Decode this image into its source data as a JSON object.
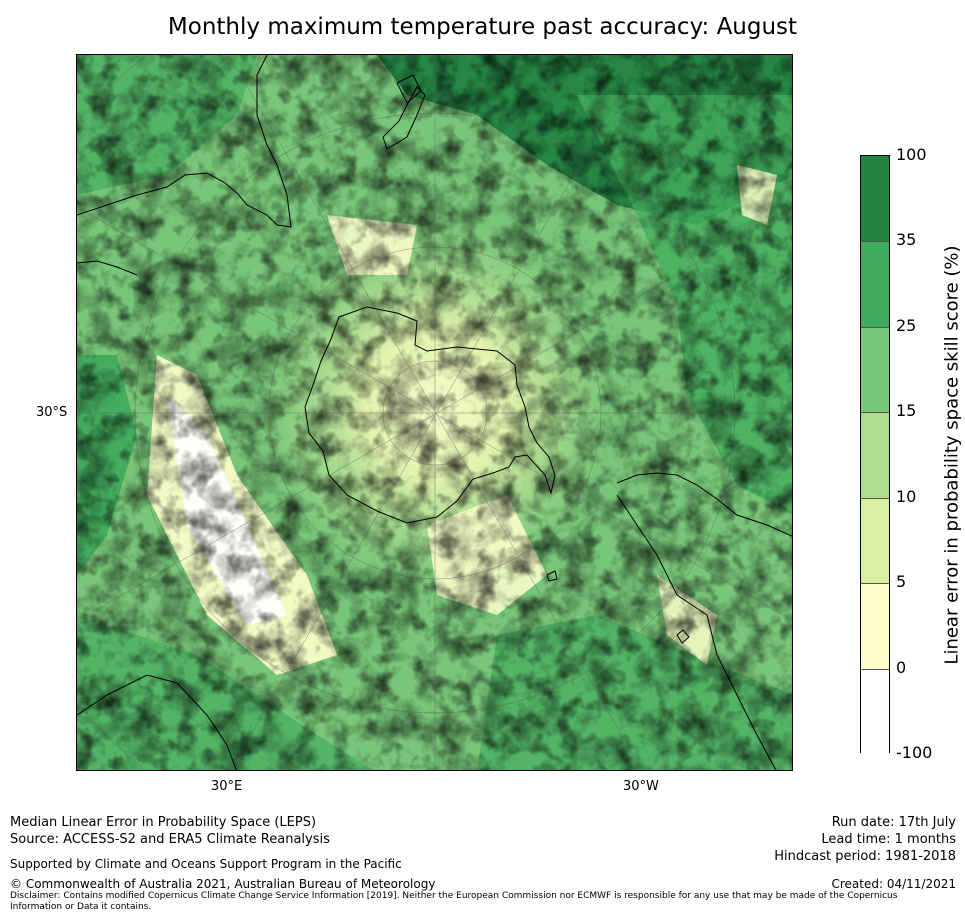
{
  "title": "Monthly maximum temperature past accuracy: August",
  "map": {
    "lat_label": "30°S",
    "lon_labels": [
      "30°E",
      "30°W"
    ]
  },
  "colorbar": {
    "label": "Linear error in probability space skill score (%)",
    "ticks": [
      "100",
      "35",
      "25",
      "15",
      "10",
      "5",
      "0",
      "-100"
    ],
    "colors": [
      "#238443",
      "#41ab5d",
      "#78c679",
      "#addd8e",
      "#d9f0a3",
      "#ffffcc",
      "#ffffff"
    ]
  },
  "footer": {
    "line1": "Median Linear Error in Probability Space (LEPS)",
    "line2": "Source: ACCESS-S2 and ERA5 Climate Reanalysis",
    "support": "Supported by Climate and Oceans Support Program in the Pacific",
    "copyright": "© Commonwealth of Australia 2021, Australian Bureau of Meteorology",
    "disclaimer": "Disclaimer: Contains modified Copernicus Climate Change Service Information [2019]. Neither the European Commission nor ECMWF is responsible for any use that may be made of the Copernicus Information or Data it contains.",
    "run_date": "Run date: 17th July",
    "lead_time": "Lead time: 1 months",
    "hindcast": "Hindcast period: 1981-2018",
    "created": "Created: 04/11/2021"
  }
}
